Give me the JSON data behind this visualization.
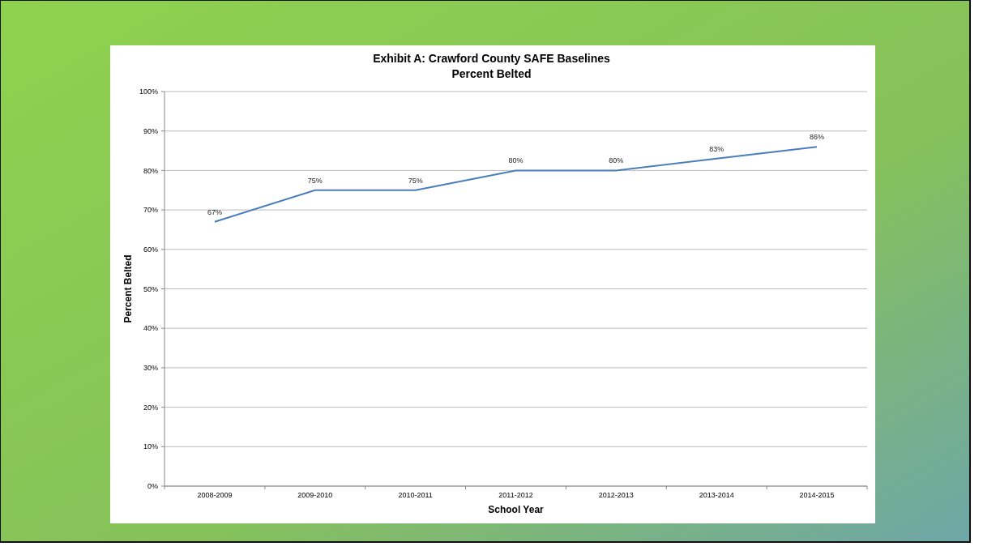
{
  "chart_data": {
    "type": "line",
    "title": "Exhibit A:  Crawford County SAFE Baselines",
    "subtitle": "Percent Belted",
    "xlabel": "School Year",
    "ylabel": "Percent Belted",
    "categories": [
      "2008-2009",
      "2009-2010",
      "2010-2011",
      "2011-2012",
      "2012-2013",
      "2013-2014",
      "2014-2015"
    ],
    "series": [
      {
        "color": "#4a7ebb",
        "values": [
          67,
          75,
          75,
          80,
          80,
          83,
          86
        ],
        "value_labels": [
          "67%",
          "75%",
          "75%",
          "80%",
          "80%",
          "83%",
          "86%"
        ]
      }
    ],
    "ylim": [
      0,
      100
    ],
    "yticks": [
      {
        "value": 0,
        "label": "0%"
      },
      {
        "value": 10,
        "label": "10%"
      },
      {
        "value": 20,
        "label": "20%"
      },
      {
        "value": 30,
        "label": "30%"
      },
      {
        "value": 40,
        "label": "40%"
      },
      {
        "value": 50,
        "label": "50%"
      },
      {
        "value": 60,
        "label": "60%"
      },
      {
        "value": 70,
        "label": "70%"
      },
      {
        "value": 80,
        "label": "80%"
      },
      {
        "value": 90,
        "label": "90%"
      },
      {
        "value": 100,
        "label": "100%"
      }
    ],
    "grid": "y",
    "marker": "none",
    "line_style": "solid"
  }
}
